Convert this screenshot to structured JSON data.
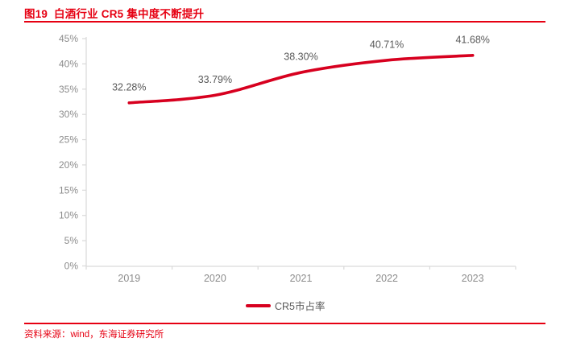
{
  "page": {
    "title": "图19  白酒行业 CR5 集中度不断提升",
    "source": "资料来源：wind，东海证券研究所"
  },
  "colors": {
    "accent_red": "#e60012",
    "line_red": "#d7001f",
    "axis_line": "#d9d9d9",
    "axis_label_gray": "#8c8c8c",
    "data_label_gray": "#595959"
  },
  "legend": {
    "label": "CR5市占率"
  },
  "chart_data": {
    "type": "line",
    "title": "白酒行业 CR5 集中度不断提升",
    "categories": [
      "2019",
      "2020",
      "2021",
      "2022",
      "2023"
    ],
    "series": [
      {
        "name": "CR5市占率",
        "values": [
          32.28,
          33.79,
          38.3,
          40.71,
          41.68
        ]
      }
    ],
    "data_labels": [
      "32.28%",
      "33.79%",
      "38.30%",
      "40.71%",
      "41.68%"
    ],
    "y_tick_labels": [
      "0%",
      "5%",
      "10%",
      "15%",
      "20%",
      "25%",
      "30%",
      "35%",
      "40%",
      "45%"
    ],
    "ylim": [
      0,
      45
    ],
    "y_tick_step": 5,
    "xlabel": "",
    "ylabel": "",
    "grid": false,
    "smooth": true,
    "legend_position": "bottom-center"
  }
}
